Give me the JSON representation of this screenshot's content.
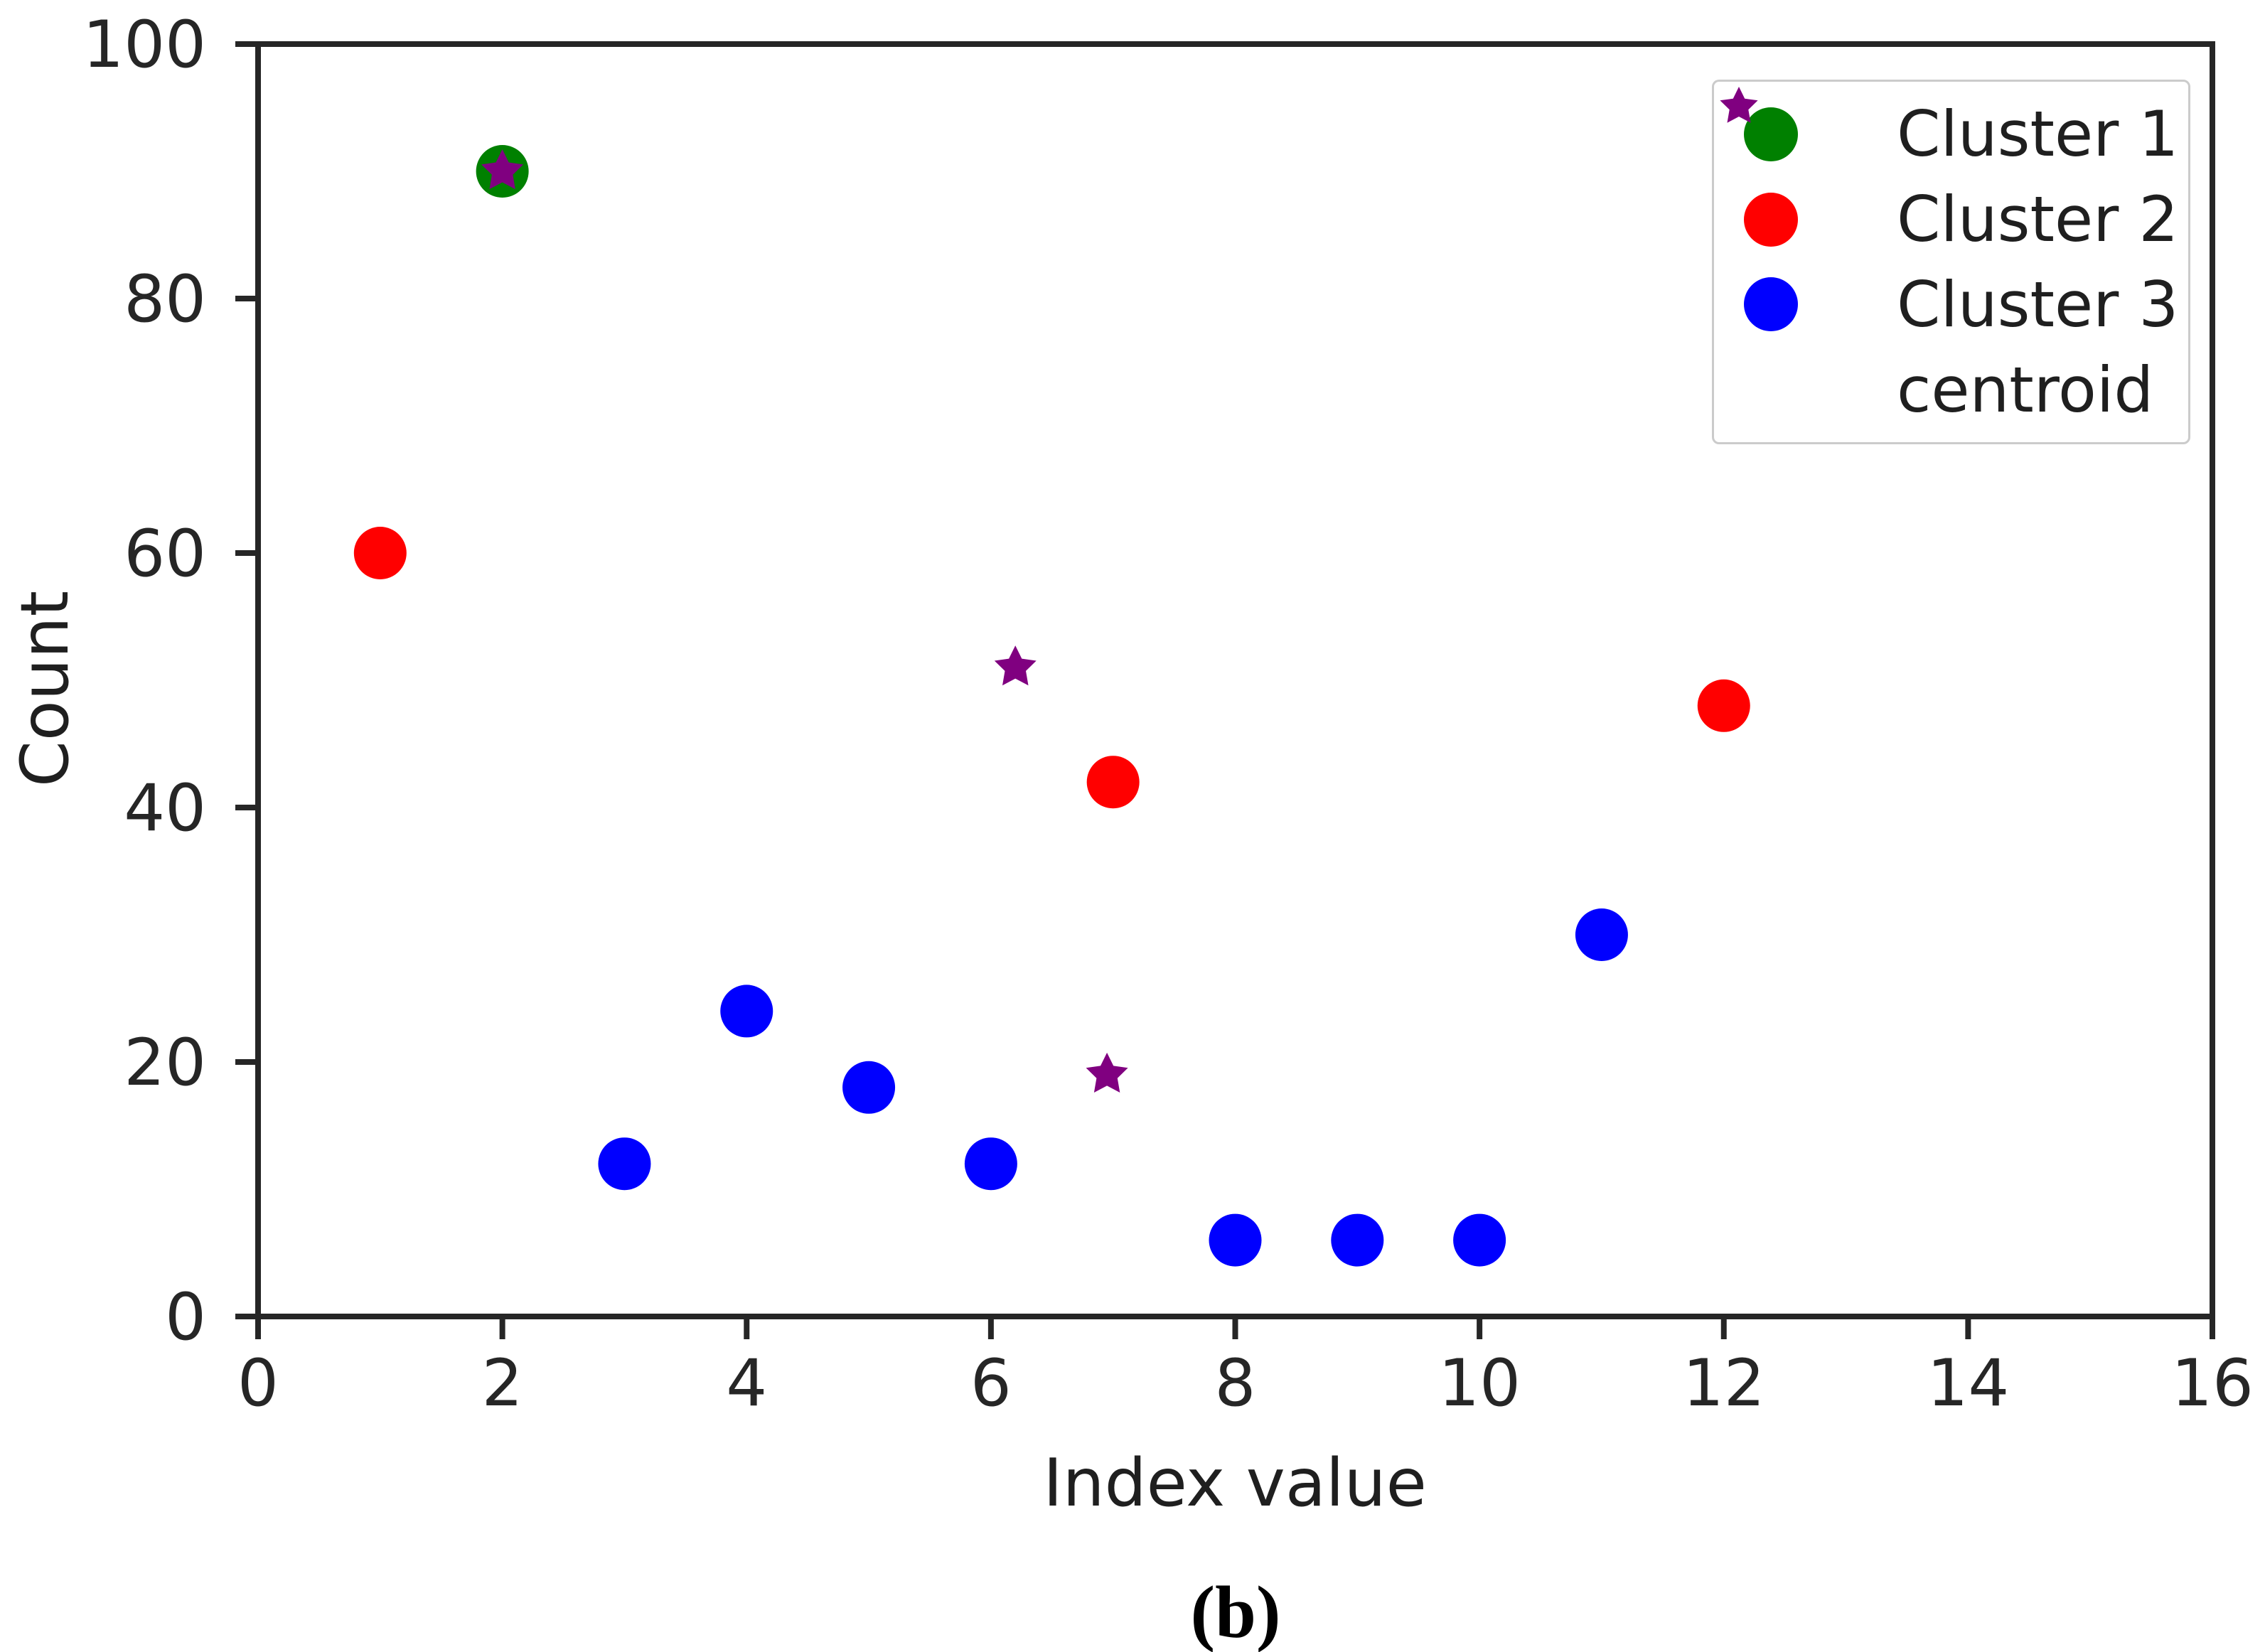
{
  "caption": "(b)",
  "colors": {
    "cluster1": "#008000",
    "cluster2": "#ff0000",
    "cluster3": "#0000ff",
    "centroid": "#800080",
    "axis": "#262626",
    "text": "#1f1f1f",
    "legend_border": "#cbcbcb"
  },
  "chart_data": {
    "type": "scatter",
    "title": "",
    "xlabel": "Index value",
    "ylabel": "Count",
    "xlim": [
      0,
      16
    ],
    "ylim": [
      0,
      100
    ],
    "xticks": [
      0,
      2,
      4,
      6,
      8,
      10,
      12,
      14,
      16
    ],
    "yticks": [
      0,
      20,
      40,
      60,
      80,
      100
    ],
    "grid": false,
    "legend_position": "upper right",
    "series": [
      {
        "name": "Cluster 1",
        "marker": "circle",
        "color": "#008000",
        "points": [
          [
            2,
            90
          ]
        ]
      },
      {
        "name": "Cluster 2",
        "marker": "circle",
        "color": "#ff0000",
        "points": [
          [
            1,
            60
          ],
          [
            7,
            42
          ],
          [
            12,
            48
          ]
        ]
      },
      {
        "name": "Cluster 3",
        "marker": "circle",
        "color": "#0000ff",
        "points": [
          [
            3,
            12
          ],
          [
            4,
            24
          ],
          [
            5,
            18
          ],
          [
            6,
            12
          ],
          [
            8,
            6
          ],
          [
            9,
            6
          ],
          [
            10,
            6
          ],
          [
            11,
            30
          ]
        ]
      },
      {
        "name": "centroid",
        "marker": "star",
        "color": "#800080",
        "points": [
          [
            2,
            90
          ],
          [
            6.2,
            51
          ],
          [
            6.95,
            19
          ]
        ]
      }
    ]
  }
}
